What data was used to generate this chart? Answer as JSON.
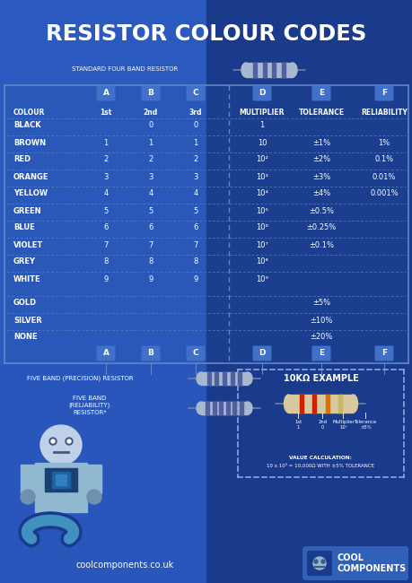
{
  "title": "RESISTOR COLOUR CODES",
  "bg_left": "#2a5abf",
  "bg_right": "#1a3a8c",
  "text_color": "#ffffff",
  "dashed_color": "#5a80c0",
  "letter_box_color": "#3a6ad4",
  "subtitle_resistor": "STANDARD FOUR BAND RESISTOR",
  "subtitle_five": "FIVE BAND (PRECISION) RESISTOR",
  "subtitle_five2": "FIVE BAND\n(RELIABILITY)\nRESISTOR*",
  "example_title": "10KΩ EXAMPLE",
  "example_label1": "1st\n1",
  "example_label2": "2nd\n0",
  "example_label3": "Multiplier\n10³",
  "example_label4": "Tolerance\n±5%",
  "example_calc1": "VALUE CALCULATION:",
  "example_calc2": "10 x 10³ = 10,000Ω WITH ±5% TOLERANCE",
  "footer": "coolcomponents.co.uk",
  "brand1": "COOL",
  "brand2": "COMPONENTS",
  "col_labels": [
    "A",
    "B",
    "C",
    "D",
    "E",
    "F"
  ],
  "header_row": [
    "COLOUR",
    "1st",
    "2nd",
    "3rd",
    "MULTIPLIER",
    "TOLERANCE",
    "RELIABILITY"
  ],
  "rows": [
    [
      "BLACK",
      "",
      "0",
      "0",
      "1",
      "",
      ""
    ],
    [
      "BROWN",
      "1",
      "1",
      "1",
      "10",
      "±1%",
      "1%"
    ],
    [
      "RED",
      "2",
      "2",
      "2",
      "10²",
      "±2%",
      "0.1%"
    ],
    [
      "ORANGE",
      "3",
      "3",
      "3",
      "10³",
      "±3%",
      "0.01%"
    ],
    [
      "YELLOW",
      "4",
      "4",
      "4",
      "10⁴",
      "±4%",
      "0.001%"
    ],
    [
      "GREEN",
      "5",
      "5",
      "5",
      "10⁵",
      "±0.5%",
      ""
    ],
    [
      "BLUE",
      "6",
      "6",
      "6",
      "10⁶",
      "±0.25%",
      ""
    ],
    [
      "VIOLET",
      "7",
      "7",
      "7",
      "10⁷",
      "±0.1%",
      ""
    ],
    [
      "GREY",
      "8",
      "8",
      "8",
      "10⁸",
      "",
      ""
    ],
    [
      "WHITE",
      "9",
      "9",
      "9",
      "10⁹",
      "",
      ""
    ],
    [
      "GOLD",
      "",
      "",
      "",
      "",
      "±5%",
      ""
    ],
    [
      "SILVER",
      "",
      "",
      "",
      "",
      "±10%",
      ""
    ],
    [
      "NONE",
      "",
      "",
      "",
      "",
      "±20%",
      ""
    ]
  ]
}
